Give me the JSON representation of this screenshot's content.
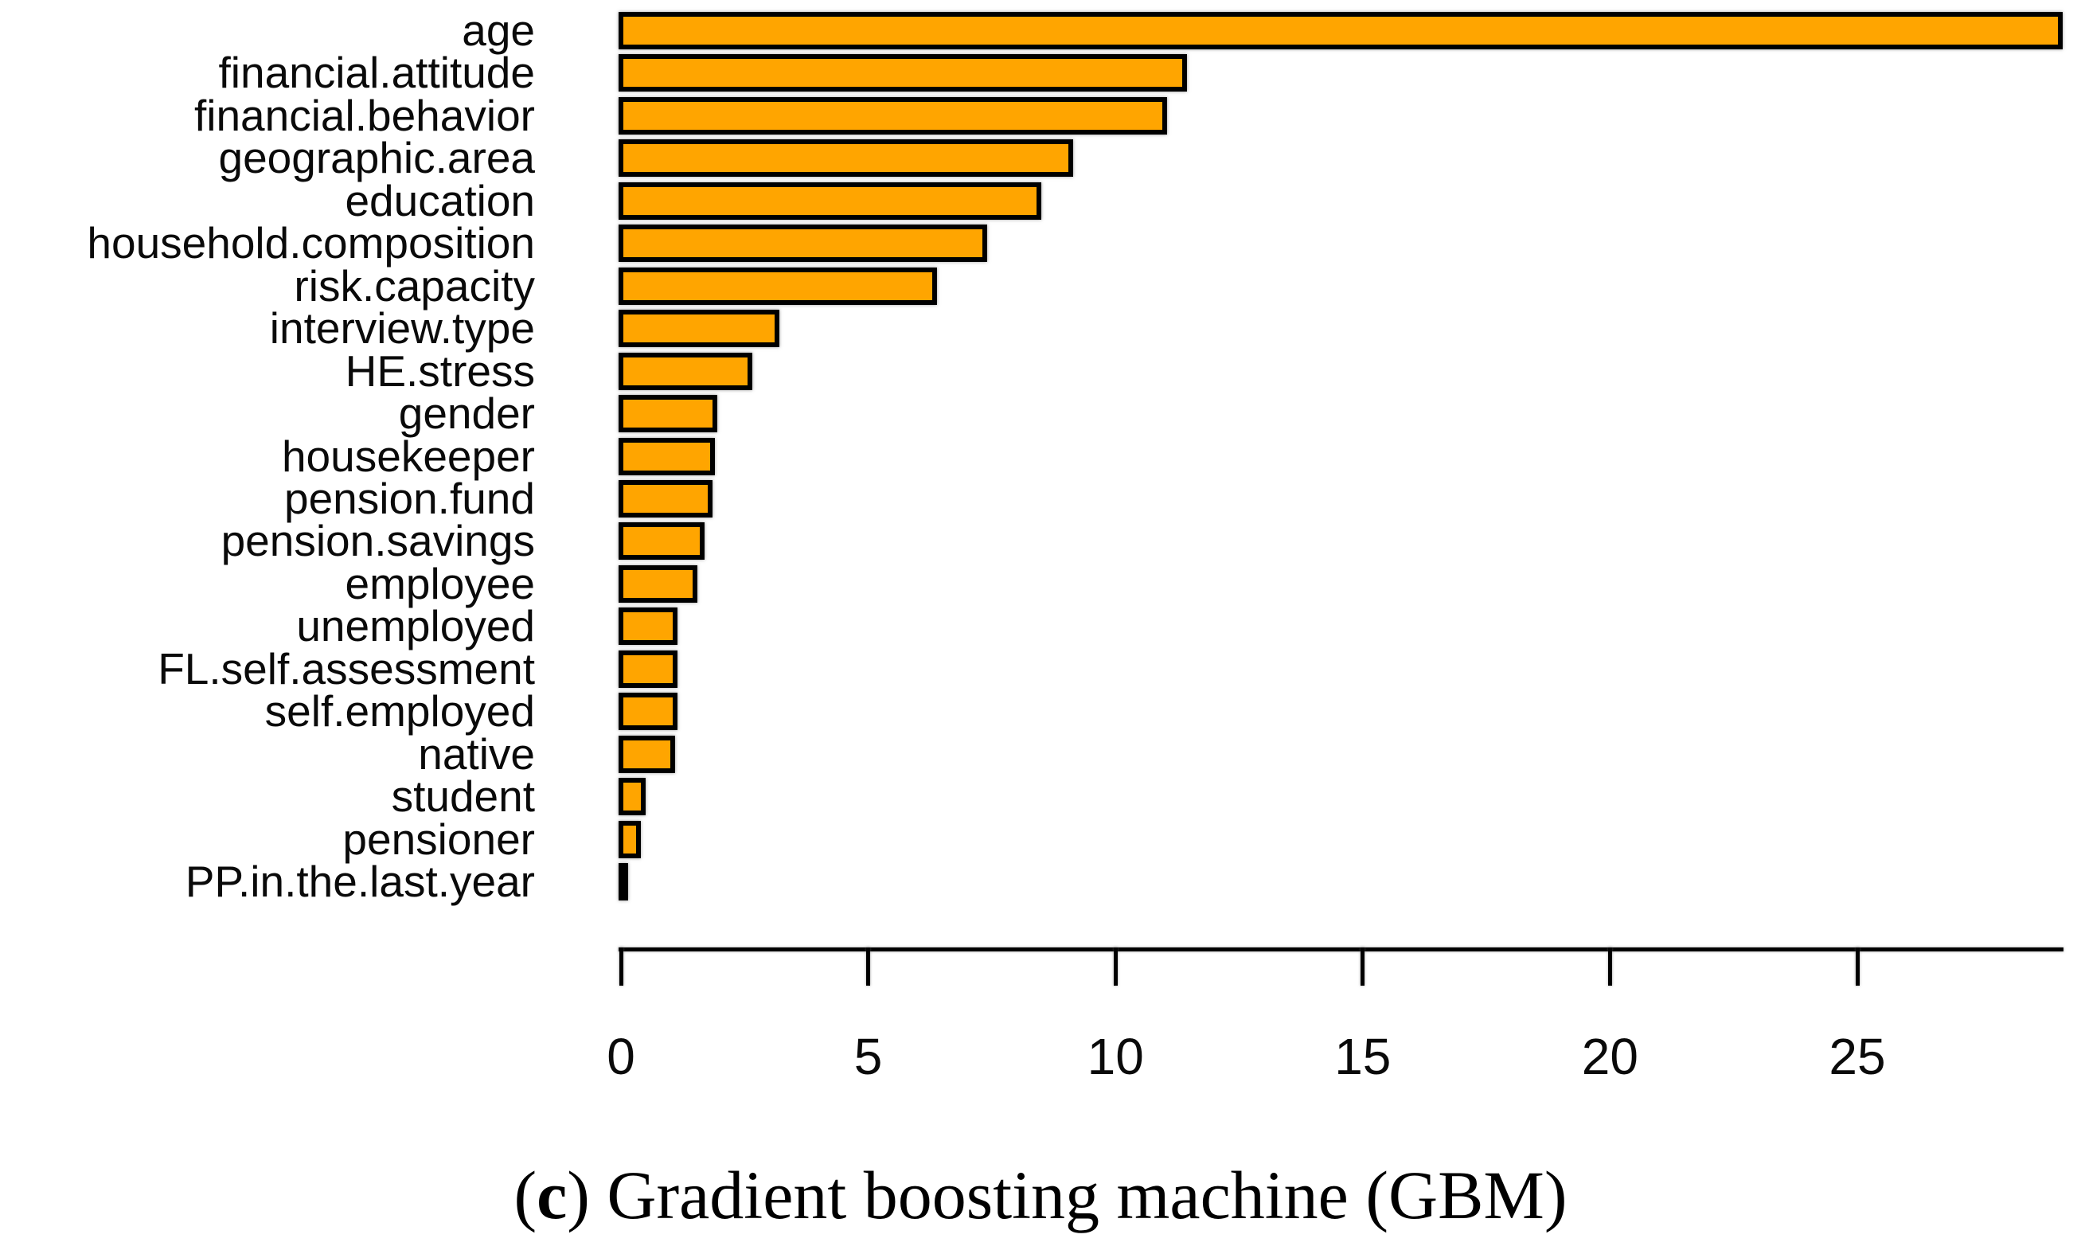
{
  "figure": {
    "caption": {
      "open_paren": "(",
      "label_letter": "c",
      "close_paren": ")",
      "text": " Gradient boosting machine (GBM)"
    }
  },
  "chart_data": {
    "type": "bar",
    "orientation": "horizontal",
    "title": "",
    "xlabel": "",
    "ylabel": "",
    "categories": [
      "age",
      "financial.attitude",
      "financial.behavior",
      "geographic.area",
      "education",
      "household.composition",
      "risk.capacity",
      "interview.type",
      "HE.stress",
      "gender",
      "housekeeper",
      "pension.fund",
      "pension.savings",
      "employee",
      "unemployed",
      "FL.self.assessment",
      "self.employed",
      "native",
      "student",
      "pensioner",
      "PP.in.the.last.year"
    ],
    "values": [
      29.1,
      11.4,
      11.0,
      9.1,
      8.45,
      7.35,
      6.35,
      3.15,
      2.6,
      1.9,
      1.85,
      1.8,
      1.65,
      1.5,
      1.1,
      1.1,
      1.1,
      1.05,
      0.45,
      0.35,
      0.1
    ],
    "x_ticks": [
      0,
      5,
      10,
      15,
      20,
      25
    ],
    "xlim": [
      0,
      29.2
    ],
    "bar_color": "#FFA500",
    "bar_border_color": "#000000",
    "axis_color": "#000000",
    "grid": false,
    "legend": null
  }
}
